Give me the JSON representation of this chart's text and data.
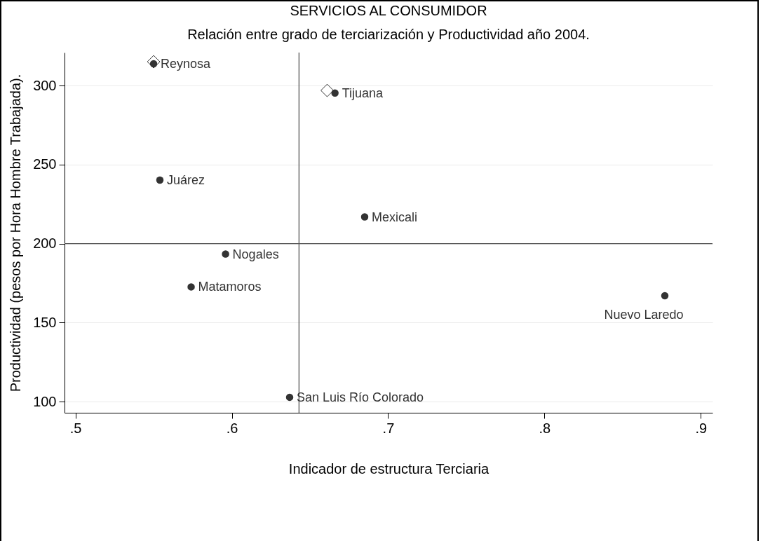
{
  "chart_data": {
    "type": "scatter",
    "title": "SERVICIOS AL CONSUMIDOR",
    "subtitle": "Relación entre grado de terciarización y Productividad  año 2004.",
    "xlabel": "Indicador de estructura Terciaria",
    "ylabel": "Productividad  (pesos por Hora Hombre Trabajada).",
    "series": [
      {
        "color": "#333333",
        "marker": "circle",
        "x": [
          0.55,
          0.666,
          0.554,
          0.685,
          0.596,
          0.574,
          0.877,
          0.637
        ],
        "values": [
          313.9,
          295.4,
          240.2,
          216.9,
          193.4,
          172.6,
          167.0,
          102.7
        ]
      },
      {
        "color": "#333333",
        "marker": "diamond",
        "x": [
          0.55,
          0.661
        ],
        "values": [
          315.2,
          297.0
        ]
      }
    ],
    "annotations": [
      {
        "text": "Reynosa",
        "x": 0.55,
        "y": 313.9
      },
      {
        "text": "Tijuana",
        "x": 0.666,
        "y": 295.4
      },
      {
        "text": "Juárez",
        "x": 0.554,
        "y": 240.2
      },
      {
        "text": "Mexicali",
        "x": 0.685,
        "y": 216.9
      },
      {
        "text": "Nogales",
        "x": 0.596,
        "y": 193.4
      },
      {
        "text": "Matamoros",
        "x": 0.574,
        "y": 172.6
      },
      {
        "text": "Nuevo Laredo",
        "x": 0.877,
        "y": 167.0
      },
      {
        "text": "San Luis Río Colorado",
        "x": 0.637,
        "y": 102.7
      }
    ],
    "ref_lines": [
      {
        "axis": "x",
        "value": 0.643,
        "color": "#555555"
      },
      {
        "axis": "y",
        "value": 200,
        "color": "#555555"
      }
    ],
    "xlim": [
      0.493,
      0.9075
    ],
    "xticks": [
      {
        "value": 0.5,
        "label": ".5"
      },
      {
        "value": 0.6,
        "label": ".6"
      },
      {
        "value": 0.7,
        "label": ".7"
      },
      {
        "value": 0.8,
        "label": ".8"
      },
      {
        "value": 0.9,
        "label": ".9"
      }
    ],
    "ylim": [
      92.9,
      321
    ],
    "yticks": [
      100,
      150,
      200,
      250,
      300
    ],
    "grid": "y"
  }
}
